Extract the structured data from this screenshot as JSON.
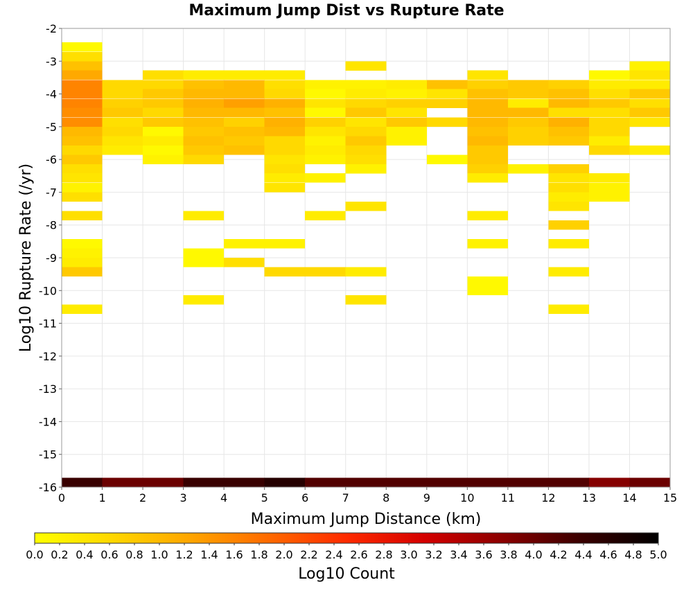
{
  "chart_data": {
    "type": "heatmap",
    "title": "Maximum Jump Dist vs Rupture Rate",
    "xlabel": "Maximum Jump Distance (km)",
    "ylabel": "Log10 Rupture Rate (/yr)",
    "xlim": [
      0,
      15
    ],
    "ylim": [
      -16,
      -2
    ],
    "x_ticks": [
      "0",
      "1",
      "2",
      "3",
      "4",
      "5",
      "6",
      "7",
      "8",
      "9",
      "10",
      "11",
      "12",
      "13",
      "14",
      "15"
    ],
    "y_ticks": [
      "-2",
      "-3",
      "-4",
      "-5",
      "-6",
      "-7",
      "-8",
      "-9",
      "-10",
      "-11",
      "-12",
      "-13",
      "-14",
      "-15",
      "-16"
    ],
    "x_bin_width": 1,
    "y_bin_height": 0.2857,
    "grid": true,
    "colorbar": {
      "label": "Log10 Count",
      "range": [
        0,
        5
      ],
      "orientation": "horizontal",
      "position": "bottom",
      "ticks": [
        "0.0",
        "0.2",
        "0.4",
        "0.6",
        "0.8",
        "1.0",
        "1.2",
        "1.4",
        "1.6",
        "1.8",
        "2.0",
        "2.2",
        "2.4",
        "2.6",
        "2.8",
        "3.0",
        "3.2",
        "3.4",
        "3.6",
        "3.8",
        "4.0",
        "4.2",
        "4.4",
        "4.6",
        "4.8",
        "5.0"
      ],
      "colors": [
        "#ffff00",
        "#ffd700",
        "#ffa500",
        "#ff6a00",
        "#ff2a00",
        "#d40000",
        "#8b0000",
        "#3a0000",
        "#000000"
      ]
    },
    "cells_format": "[x_bin_start, log10_rate_bin_start, log10_count]",
    "cells": [
      [
        0,
        -2.71,
        0.1
      ],
      [
        0,
        -3.0,
        0.5
      ],
      [
        0,
        -3.29,
        0.9
      ],
      [
        0,
        -3.57,
        1.2
      ],
      [
        0,
        -3.86,
        1.6
      ],
      [
        0,
        -4.14,
        1.6
      ],
      [
        0,
        -4.43,
        1.6
      ],
      [
        0,
        -4.71,
        1.5
      ],
      [
        0,
        -5.0,
        1.5
      ],
      [
        0,
        -5.29,
        1.0
      ],
      [
        0,
        -5.57,
        0.9
      ],
      [
        0,
        -5.86,
        0.6
      ],
      [
        0,
        -6.14,
        0.8
      ],
      [
        0,
        -6.43,
        0.5
      ],
      [
        0,
        -6.71,
        0.4
      ],
      [
        0,
        -7.0,
        0.2
      ],
      [
        0,
        -7.29,
        0.5
      ],
      [
        0,
        -7.86,
        0.5
      ],
      [
        0,
        -8.71,
        0.1
      ],
      [
        0,
        -9.0,
        0.2
      ],
      [
        0,
        -9.29,
        0.3
      ],
      [
        0,
        -9.57,
        0.8
      ],
      [
        0,
        -10.71,
        0.3
      ],
      [
        0,
        -16.0,
        4.4
      ],
      [
        1,
        -3.86,
        0.6
      ],
      [
        1,
        -4.14,
        0.6
      ],
      [
        1,
        -4.43,
        0.7
      ],
      [
        1,
        -4.71,
        0.8
      ],
      [
        1,
        -5.0,
        0.5
      ],
      [
        1,
        -5.29,
        0.6
      ],
      [
        1,
        -5.57,
        0.4
      ],
      [
        1,
        -5.86,
        0.3
      ],
      [
        1,
        -16.0,
        4.0
      ],
      [
        2,
        -3.57,
        0.5
      ],
      [
        2,
        -3.86,
        0.6
      ],
      [
        2,
        -4.14,
        0.8
      ],
      [
        2,
        -4.43,
        0.8
      ],
      [
        2,
        -4.71,
        0.6
      ],
      [
        2,
        -5.0,
        0.8
      ],
      [
        2,
        -5.29,
        0.1
      ],
      [
        2,
        -5.57,
        0.3
      ],
      [
        2,
        -5.86,
        0.1
      ],
      [
        2,
        -6.14,
        0.2
      ],
      [
        2,
        -16.0,
        4.0
      ],
      [
        3,
        -3.57,
        0.3
      ],
      [
        3,
        -3.86,
        0.9
      ],
      [
        3,
        -4.14,
        1.0
      ],
      [
        3,
        -4.43,
        1.1
      ],
      [
        3,
        -4.71,
        1.0
      ],
      [
        3,
        -5.0,
        0.9
      ],
      [
        3,
        -5.29,
        0.8
      ],
      [
        3,
        -5.57,
        0.9
      ],
      [
        3,
        -5.86,
        0.8
      ],
      [
        3,
        -6.14,
        0.6
      ],
      [
        3,
        -7.86,
        0.3
      ],
      [
        3,
        -9.0,
        0.1
      ],
      [
        3,
        -9.29,
        0.1
      ],
      [
        3,
        -10.43,
        0.3
      ],
      [
        3,
        -16.0,
        4.4
      ],
      [
        4,
        -3.57,
        0.3
      ],
      [
        4,
        -3.86,
        1.0
      ],
      [
        4,
        -4.14,
        1.0
      ],
      [
        4,
        -4.43,
        1.3
      ],
      [
        4,
        -4.71,
        1.0
      ],
      [
        4,
        -5.0,
        0.7
      ],
      [
        4,
        -5.29,
        0.9
      ],
      [
        4,
        -5.57,
        0.8
      ],
      [
        4,
        -5.86,
        0.9
      ],
      [
        4,
        -8.71,
        0.2
      ],
      [
        4,
        -9.29,
        0.5
      ],
      [
        4,
        -16.0,
        4.4
      ],
      [
        5,
        -3.57,
        0.3
      ],
      [
        5,
        -3.86,
        0.5
      ],
      [
        5,
        -4.14,
        0.6
      ],
      [
        5,
        -4.43,
        1.1
      ],
      [
        5,
        -4.71,
        0.9
      ],
      [
        5,
        -5.0,
        1.1
      ],
      [
        5,
        -5.29,
        1.0
      ],
      [
        5,
        -5.57,
        0.6
      ],
      [
        5,
        -5.86,
        0.6
      ],
      [
        5,
        -6.14,
        0.4
      ],
      [
        5,
        -6.43,
        0.5
      ],
      [
        5,
        -6.71,
        0.3
      ],
      [
        5,
        -7.0,
        0.4
      ],
      [
        5,
        -8.71,
        0.2
      ],
      [
        5,
        -9.57,
        0.6
      ],
      [
        5,
        -16.0,
        4.6
      ],
      [
        6,
        -3.86,
        0.2
      ],
      [
        6,
        -4.14,
        0.1
      ],
      [
        6,
        -4.43,
        0.4
      ],
      [
        6,
        -4.71,
        0.1
      ],
      [
        6,
        -5.0,
        0.7
      ],
      [
        6,
        -5.29,
        0.4
      ],
      [
        6,
        -5.57,
        0.2
      ],
      [
        6,
        -5.86,
        0.3
      ],
      [
        6,
        -6.14,
        0.2
      ],
      [
        6,
        -6.71,
        0.2
      ],
      [
        6,
        -7.86,
        0.3
      ],
      [
        6,
        -9.57,
        0.6
      ],
      [
        6,
        -16.0,
        4.2
      ],
      [
        7,
        -3.29,
        0.4
      ],
      [
        7,
        -3.86,
        0.2
      ],
      [
        7,
        -4.14,
        0.3
      ],
      [
        7,
        -4.43,
        0.6
      ],
      [
        7,
        -4.71,
        0.8
      ],
      [
        7,
        -5.0,
        0.4
      ],
      [
        7,
        -5.29,
        0.6
      ],
      [
        7,
        -5.57,
        0.8
      ],
      [
        7,
        -5.86,
        0.6
      ],
      [
        7,
        -6.14,
        0.5
      ],
      [
        7,
        -6.43,
        0.2
      ],
      [
        7,
        -7.57,
        0.4
      ],
      [
        7,
        -9.57,
        0.3
      ],
      [
        7,
        -10.43,
        0.4
      ],
      [
        7,
        -16.0,
        4.2
      ],
      [
        8,
        -3.86,
        0.3
      ],
      [
        8,
        -4.14,
        0.2
      ],
      [
        8,
        -4.43,
        0.7
      ],
      [
        8,
        -4.71,
        0.4
      ],
      [
        8,
        -5.0,
        0.8
      ],
      [
        8,
        -5.29,
        0.2
      ],
      [
        8,
        -5.57,
        0.2
      ],
      [
        8,
        -16.0,
        4.2
      ],
      [
        9,
        -3.86,
        0.9
      ],
      [
        9,
        -4.14,
        0.4
      ],
      [
        9,
        -4.43,
        0.7
      ],
      [
        9,
        -5.0,
        0.6
      ],
      [
        9,
        -6.14,
        0.1
      ],
      [
        9,
        -16.0,
        4.2
      ],
      [
        10,
        -3.57,
        0.4
      ],
      [
        10,
        -3.86,
        0.7
      ],
      [
        10,
        -4.14,
        0.9
      ],
      [
        10,
        -4.43,
        1.0
      ],
      [
        10,
        -4.71,
        1.0
      ],
      [
        10,
        -5.0,
        1.0
      ],
      [
        10,
        -5.29,
        0.9
      ],
      [
        10,
        -5.57,
        1.0
      ],
      [
        10,
        -5.86,
        0.8
      ],
      [
        10,
        -6.14,
        0.8
      ],
      [
        10,
        -6.43,
        0.7
      ],
      [
        10,
        -6.71,
        0.3
      ],
      [
        10,
        -7.86,
        0.3
      ],
      [
        10,
        -8.71,
        0.2
      ],
      [
        10,
        -9.86,
        0.1
      ],
      [
        10,
        -10.14,
        0.1
      ],
      [
        10,
        -16.0,
        4.2
      ],
      [
        11,
        -3.86,
        0.8
      ],
      [
        11,
        -4.14,
        0.8
      ],
      [
        11,
        -4.43,
        0.3
      ],
      [
        11,
        -4.71,
        1.0
      ],
      [
        11,
        -5.0,
        0.8
      ],
      [
        11,
        -5.29,
        0.7
      ],
      [
        11,
        -5.57,
        0.7
      ],
      [
        11,
        -6.43,
        0.2
      ],
      [
        11,
        -16.0,
        4.2
      ],
      [
        12,
        -3.86,
        0.7
      ],
      [
        12,
        -4.14,
        0.9
      ],
      [
        12,
        -4.43,
        1.0
      ],
      [
        12,
        -4.71,
        0.5
      ],
      [
        12,
        -5.0,
        1.1
      ],
      [
        12,
        -5.29,
        0.9
      ],
      [
        12,
        -5.57,
        0.8
      ],
      [
        12,
        -6.43,
        0.7
      ],
      [
        12,
        -6.71,
        0.4
      ],
      [
        12,
        -7.0,
        0.5
      ],
      [
        12,
        -7.29,
        0.3
      ],
      [
        12,
        -7.57,
        0.4
      ],
      [
        12,
        -8.14,
        0.7
      ],
      [
        12,
        -8.71,
        0.3
      ],
      [
        12,
        -9.57,
        0.3
      ],
      [
        12,
        -10.71,
        0.3
      ],
      [
        12,
        -16.0,
        4.2
      ],
      [
        13,
        -3.57,
        0.1
      ],
      [
        13,
        -3.86,
        0.3
      ],
      [
        13,
        -4.14,
        0.5
      ],
      [
        13,
        -4.43,
        0.8
      ],
      [
        13,
        -4.71,
        0.5
      ],
      [
        13,
        -5.0,
        0.6
      ],
      [
        13,
        -5.29,
        0.6
      ],
      [
        13,
        -5.57,
        0.3
      ],
      [
        13,
        -5.86,
        0.6
      ],
      [
        13,
        -6.71,
        0.3
      ],
      [
        13,
        -7.0,
        0.2
      ],
      [
        13,
        -7.29,
        0.2
      ],
      [
        13,
        -16.0,
        3.8
      ],
      [
        14,
        -3.29,
        0.2
      ],
      [
        14,
        -3.57,
        0.4
      ],
      [
        14,
        -3.86,
        0.3
      ],
      [
        14,
        -4.14,
        0.8
      ],
      [
        14,
        -4.43,
        0.5
      ],
      [
        14,
        -4.71,
        0.8
      ],
      [
        14,
        -5.0,
        0.4
      ],
      [
        14,
        -5.86,
        0.3
      ],
      [
        14,
        -16.0,
        4.0
      ]
    ]
  }
}
